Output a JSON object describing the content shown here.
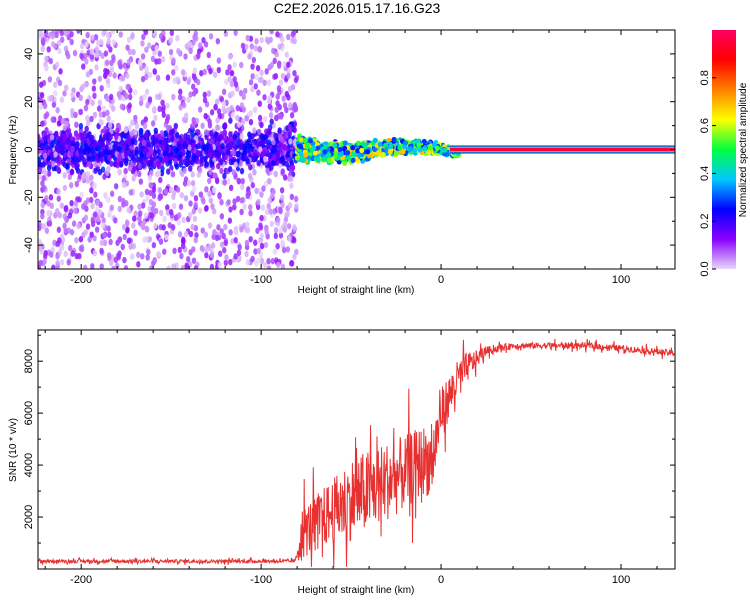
{
  "title": "C2E2.2026.015.17.16.G23",
  "chart_data": [
    {
      "type": "heatmap",
      "xlabel": "Height of straight line (km)",
      "ylabel": "Frequency (Hz)",
      "xlim": [
        -224,
        130
      ],
      "ylim": [
        -50,
        50
      ],
      "xticks": [
        -200,
        -100,
        0,
        100
      ],
      "yticks": [
        -40,
        -20,
        0,
        20,
        40
      ],
      "colorbar": {
        "label": "Normalized spectral amplitude",
        "range": [
          0.0,
          1.0
        ],
        "ticks": [
          0.0,
          0.2,
          0.4,
          0.6,
          0.8
        ],
        "colormap": [
          "#e8d8f8",
          "#8a00ff",
          "#0000ff",
          "#00c8ff",
          "#00ff40",
          "#ffff00",
          "#ff8000",
          "#ff0000",
          "#ff0060"
        ]
      },
      "regions": [
        {
          "x_range": [
            -224,
            -80
          ],
          "description_values": {
            "freq_spread_hz": 50,
            "core_spread_hz": 8,
            "amplitude": 0.15
          }
        },
        {
          "x_range": [
            -80,
            10
          ],
          "description_values": {
            "freq_spread_hz": 6,
            "amplitude": 0.5
          }
        },
        {
          "x_range": [
            10,
            130
          ],
          "description_values": {
            "freq_hz": 0,
            "amplitude": 0.95
          }
        }
      ]
    },
    {
      "type": "line",
      "xlabel": "Height of straight line (km)",
      "ylabel": "SNR (10 * v/v)",
      "xlim": [
        -224,
        130
      ],
      "ylim": [
        0,
        9200
      ],
      "xticks": [
        -200,
        -100,
        0,
        100
      ],
      "yticks": [
        2000,
        4000,
        6000,
        8000
      ],
      "series": [
        {
          "color": "#e83030",
          "x": [
            -224,
            -200,
            -150,
            -100,
            -81,
            -78,
            -70,
            -60,
            -50,
            -40,
            -30,
            -20,
            -10,
            -5,
            0,
            10,
            15,
            20,
            25,
            40,
            60,
            80,
            100,
            115,
            130
          ],
          "y": [
            300,
            300,
            300,
            300,
            300,
            1300,
            1800,
            2200,
            2700,
            3000,
            3400,
            3700,
            4200,
            4100,
            6000,
            7400,
            7800,
            8100,
            8400,
            8600,
            8600,
            8600,
            8500,
            8400,
            8300
          ],
          "noise": [
            80,
            80,
            80,
            80,
            80,
            1300,
            1300,
            1600,
            2000,
            2000,
            1900,
            1800,
            1700,
            1700,
            1200,
            900,
            700,
            400,
            200,
            150,
            150,
            150,
            150,
            150,
            150
          ]
        }
      ]
    }
  ]
}
